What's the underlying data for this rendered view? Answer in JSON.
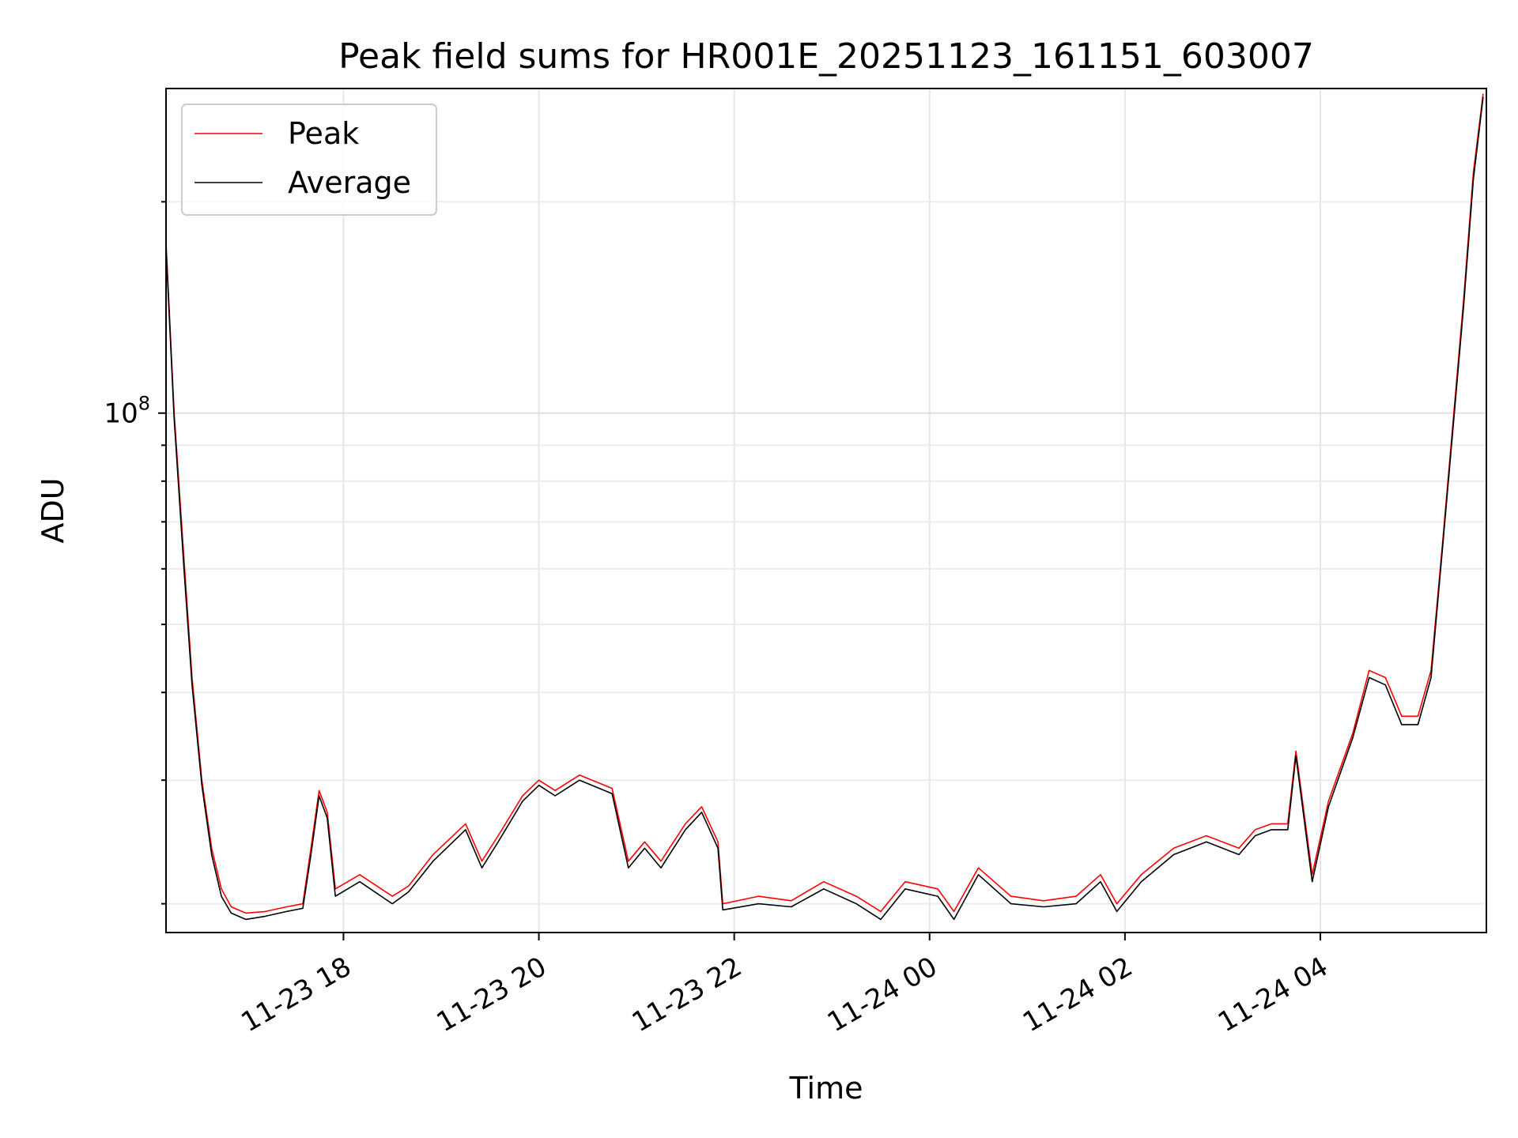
{
  "chart_data": {
    "type": "line",
    "title": "Peak field sums for HR001E_20251123_161151_603007",
    "xlabel": "Time",
    "ylabel": "ADU",
    "yscale": "log",
    "grid": true,
    "legend_position": "top-left",
    "xlim": [
      "2025-11-23 16:11",
      "2025-11-24 05:42"
    ],
    "ylim": [
      18200000.0,
      290000000.0
    ],
    "x_ticks": [
      {
        "value": "2025-11-23 18:00",
        "label": "11-23 18"
      },
      {
        "value": "2025-11-23 20:00",
        "label": "11-23 20"
      },
      {
        "value": "2025-11-23 22:00",
        "label": "11-23 22"
      },
      {
        "value": "2025-11-24 00:00",
        "label": "11-24 00"
      },
      {
        "value": "2025-11-24 02:00",
        "label": "11-24 02"
      },
      {
        "value": "2025-11-24 04:00",
        "label": "11-24 04"
      }
    ],
    "y_ticks": [
      {
        "value": 100000000,
        "label_base": "10",
        "label_exp": "8"
      }
    ],
    "series": [
      {
        "name": "Peak",
        "color": "#ff0000",
        "points": [
          [
            "2025-11-23 16:11",
            175000000.0
          ],
          [
            "2025-11-23 16:16",
            100000000.0
          ],
          [
            "2025-11-23 16:22",
            62000000.0
          ],
          [
            "2025-11-23 16:27",
            42000000.0
          ],
          [
            "2025-11-23 16:33",
            30000000.0
          ],
          [
            "2025-11-23 16:39",
            24000000.0
          ],
          [
            "2025-11-23 16:45",
            21000000.0
          ],
          [
            "2025-11-23 16:51",
            19800000.0
          ],
          [
            "2025-11-23 17:00",
            19400000.0
          ],
          [
            "2025-11-23 17:12",
            19500000.0
          ],
          [
            "2025-11-23 17:25",
            19800000.0
          ],
          [
            "2025-11-23 17:35",
            20000000.0
          ],
          [
            "2025-11-23 17:40",
            24000000.0
          ],
          [
            "2025-11-23 17:45",
            29000000.0
          ],
          [
            "2025-11-23 17:50",
            27000000.0
          ],
          [
            "2025-11-23 17:55",
            21000000.0
          ],
          [
            "2025-11-23 18:10",
            22000000.0
          ],
          [
            "2025-11-23 18:30",
            20500000.0
          ],
          [
            "2025-11-23 18:40",
            21200000.0
          ],
          [
            "2025-11-23 18:55",
            23500000.0
          ],
          [
            "2025-11-23 19:15",
            26000000.0
          ],
          [
            "2025-11-23 19:25",
            23000000.0
          ],
          [
            "2025-11-23 19:35",
            25000000.0
          ],
          [
            "2025-11-23 19:50",
            28500000.0
          ],
          [
            "2025-11-23 20:00",
            30000000.0
          ],
          [
            "2025-11-23 20:10",
            29000000.0
          ],
          [
            "2025-11-23 20:25",
            30500000.0
          ],
          [
            "2025-11-23 20:45",
            29200000.0
          ],
          [
            "2025-11-23 20:55",
            23000000.0
          ],
          [
            "2025-11-23 21:05",
            24500000.0
          ],
          [
            "2025-11-23 21:15",
            23000000.0
          ],
          [
            "2025-11-23 21:30",
            26000000.0
          ],
          [
            "2025-11-23 21:40",
            27500000.0
          ],
          [
            "2025-11-23 21:50",
            24500000.0
          ],
          [
            "2025-11-23 21:53",
            20000000.0
          ],
          [
            "2025-11-23 22:15",
            20500000.0
          ],
          [
            "2025-11-23 22:35",
            20200000.0
          ],
          [
            "2025-11-23 22:55",
            21500000.0
          ],
          [
            "2025-11-23 23:15",
            20500000.0
          ],
          [
            "2025-11-23 23:30",
            19500000.0
          ],
          [
            "2025-11-23 23:45",
            21500000.0
          ],
          [
            "2025-11-24 00:05",
            21000000.0
          ],
          [
            "2025-11-24 00:15",
            19500000.0
          ],
          [
            "2025-11-24 00:30",
            22500000.0
          ],
          [
            "2025-11-24 00:50",
            20500000.0
          ],
          [
            "2025-11-24 01:10",
            20200000.0
          ],
          [
            "2025-11-24 01:30",
            20500000.0
          ],
          [
            "2025-11-24 01:45",
            22000000.0
          ],
          [
            "2025-11-24 01:55",
            20000000.0
          ],
          [
            "2025-11-24 02:10",
            22000000.0
          ],
          [
            "2025-11-24 02:30",
            24000000.0
          ],
          [
            "2025-11-24 02:50",
            25000000.0
          ],
          [
            "2025-11-24 03:10",
            24000000.0
          ],
          [
            "2025-11-24 03:20",
            25500000.0
          ],
          [
            "2025-11-24 03:30",
            26000000.0
          ],
          [
            "2025-11-24 03:40",
            26000000.0
          ],
          [
            "2025-11-24 03:45",
            33000000.0
          ],
          [
            "2025-11-24 03:55",
            22000000.0
          ],
          [
            "2025-11-24 04:05",
            28000000.0
          ],
          [
            "2025-11-24 04:20",
            35000000.0
          ],
          [
            "2025-11-24 04:30",
            43000000.0
          ],
          [
            "2025-11-24 04:40",
            42000000.0
          ],
          [
            "2025-11-24 04:50",
            37000000.0
          ],
          [
            "2025-11-24 05:00",
            37000000.0
          ],
          [
            "2025-11-24 05:08",
            43000000.0
          ],
          [
            "2025-11-24 05:15",
            65000000.0
          ],
          [
            "2025-11-24 05:22",
            100000000.0
          ],
          [
            "2025-11-24 05:28",
            145000000.0
          ],
          [
            "2025-11-24 05:34",
            220000000.0
          ],
          [
            "2025-11-24 05:40",
            285000000.0
          ]
        ]
      },
      {
        "name": "Average",
        "color": "#000000",
        "points": [
          [
            "2025-11-23 16:11",
            172000000.0
          ],
          [
            "2025-11-23 16:16",
            98000000.0
          ],
          [
            "2025-11-23 16:22",
            60000000.0
          ],
          [
            "2025-11-23 16:27",
            41000000.0
          ],
          [
            "2025-11-23 16:33",
            29500000.0
          ],
          [
            "2025-11-23 16:39",
            23500000.0
          ],
          [
            "2025-11-23 16:45",
            20500000.0
          ],
          [
            "2025-11-23 16:51",
            19400000.0
          ],
          [
            "2025-11-23 17:00",
            19000000.0
          ],
          [
            "2025-11-23 17:12",
            19200000.0
          ],
          [
            "2025-11-23 17:25",
            19500000.0
          ],
          [
            "2025-11-23 17:35",
            19700000.0
          ],
          [
            "2025-11-23 17:40",
            23500000.0
          ],
          [
            "2025-11-23 17:45",
            28500000.0
          ],
          [
            "2025-11-23 17:50",
            26500000.0
          ],
          [
            "2025-11-23 17:55",
            20500000.0
          ],
          [
            "2025-11-23 18:10",
            21500000.0
          ],
          [
            "2025-11-23 18:30",
            20000000.0
          ],
          [
            "2025-11-23 18:40",
            20800000.0
          ],
          [
            "2025-11-23 18:55",
            23000000.0
          ],
          [
            "2025-11-23 19:15",
            25500000.0
          ],
          [
            "2025-11-23 19:25",
            22500000.0
          ],
          [
            "2025-11-23 19:35",
            24500000.0
          ],
          [
            "2025-11-23 19:50",
            28000000.0
          ],
          [
            "2025-11-23 20:00",
            29500000.0
          ],
          [
            "2025-11-23 20:10",
            28500000.0
          ],
          [
            "2025-11-23 20:25",
            30000000.0
          ],
          [
            "2025-11-23 20:45",
            28700000.0
          ],
          [
            "2025-11-23 20:55",
            22500000.0
          ],
          [
            "2025-11-23 21:05",
            24000000.0
          ],
          [
            "2025-11-23 21:15",
            22500000.0
          ],
          [
            "2025-11-23 21:30",
            25500000.0
          ],
          [
            "2025-11-23 21:40",
            27000000.0
          ],
          [
            "2025-11-23 21:50",
            24000000.0
          ],
          [
            "2025-11-23 21:53",
            19600000.0
          ],
          [
            "2025-11-23 22:15",
            20000000.0
          ],
          [
            "2025-11-23 22:35",
            19800000.0
          ],
          [
            "2025-11-23 22:55",
            21000000.0
          ],
          [
            "2025-11-23 23:15",
            20000000.0
          ],
          [
            "2025-11-23 23:30",
            19000000.0
          ],
          [
            "2025-11-23 23:45",
            21000000.0
          ],
          [
            "2025-11-24 00:05",
            20500000.0
          ],
          [
            "2025-11-24 00:15",
            19000000.0
          ],
          [
            "2025-11-24 00:30",
            22000000.0
          ],
          [
            "2025-11-24 00:50",
            20000000.0
          ],
          [
            "2025-11-24 01:10",
            19800000.0
          ],
          [
            "2025-11-24 01:30",
            20000000.0
          ],
          [
            "2025-11-24 01:45",
            21500000.0
          ],
          [
            "2025-11-24 01:55",
            19500000.0
          ],
          [
            "2025-11-24 02:10",
            21500000.0
          ],
          [
            "2025-11-24 02:30",
            23500000.0
          ],
          [
            "2025-11-24 02:50",
            24500000.0
          ],
          [
            "2025-11-24 03:10",
            23500000.0
          ],
          [
            "2025-11-24 03:20",
            25000000.0
          ],
          [
            "2025-11-24 03:30",
            25500000.0
          ],
          [
            "2025-11-24 03:40",
            25500000.0
          ],
          [
            "2025-11-24 03:45",
            32500000.0
          ],
          [
            "2025-11-24 03:55",
            21500000.0
          ],
          [
            "2025-11-24 04:05",
            27500000.0
          ],
          [
            "2025-11-24 04:20",
            34500000.0
          ],
          [
            "2025-11-24 04:30",
            42000000.0
          ],
          [
            "2025-11-24 04:40",
            41000000.0
          ],
          [
            "2025-11-24 04:50",
            36000000.0
          ],
          [
            "2025-11-24 05:00",
            36000000.0
          ],
          [
            "2025-11-24 05:08",
            42000000.0
          ],
          [
            "2025-11-24 05:15",
            64000000.0
          ],
          [
            "2025-11-24 05:22",
            98000000.0
          ],
          [
            "2025-11-24 05:28",
            142000000.0
          ],
          [
            "2025-11-24 05:34",
            215000000.0
          ],
          [
            "2025-11-24 05:40",
            282000000.0
          ]
        ]
      }
    ]
  }
}
